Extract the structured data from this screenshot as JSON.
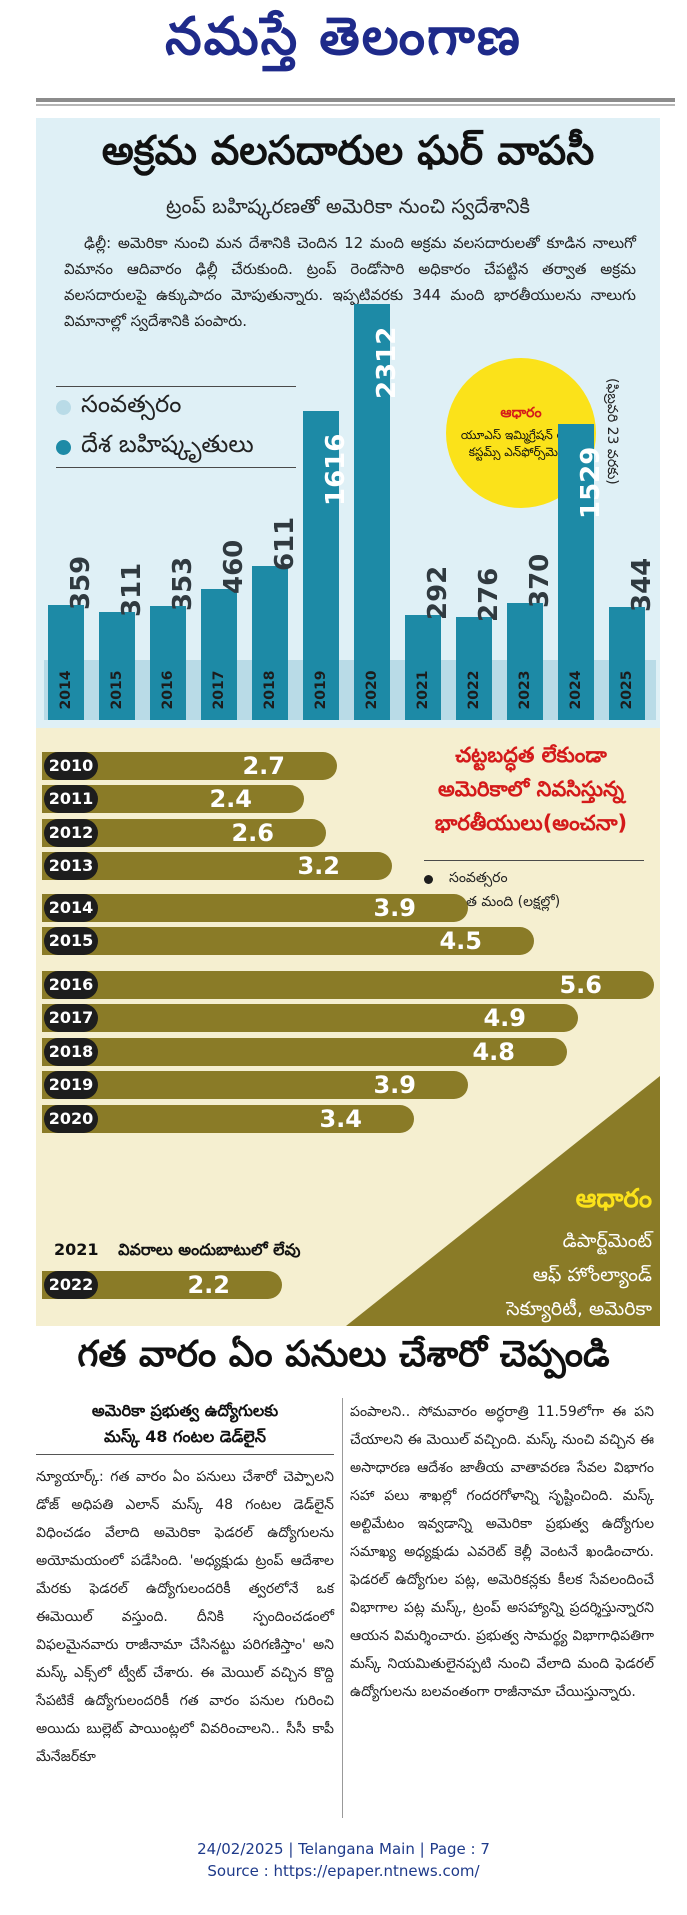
{
  "masthead": {
    "title": "నమస్తే తెలంగాణ"
  },
  "graphic": {
    "headline": "అక్రమ వలసదారుల ఘర్ వాపసీ",
    "subheadline": "ట్రంప్ బహిష్కరణతో అమెరికా నుంచి స్వదేశానికి",
    "intro": "ఢిల్లీ: అమెరికా నుంచి మన దేశానికి చెందిన 12 మంది అక్రమ వలసదారులతో కూడిన నాలుగో విమానం ఆదివారం ఢిల్లీ చేరుకుంది. ట్రంప్ రెండోసారి అధికారం చేపట్టిన తర్వాత అక్రమ వలసదారులపై ఉక్కుపాదం మోపుతున్నారు. ఇప్పటివరకు 344 మంది భారతీయులను నాలుగు విమానాల్లో స్వదేశానికి పంపారు.",
    "legend_year": "సంవత్సరం",
    "legend_deported": "దేశ బహిష్కృతులు",
    "source_label": "ఆధారం",
    "source_text": "యూఎస్ ఇమ్మిగ్రేషన్ అండ్ కస్టమ్స్ ఎన్‌ఫోర్స్‌మెంట్",
    "date_note": "(ఫిబ్రవరి 23 వరకు)",
    "colors": {
      "bar": "#1d8aa6",
      "panel": "#dff0f6",
      "strip": "#b9dbe7",
      "source_bg": "#fbe21a"
    }
  },
  "chart_data": [
    {
      "type": "bar",
      "categories": [
        "2014",
        "2015",
        "2016",
        "2017",
        "2018",
        "2019",
        "2020",
        "2021",
        "2022",
        "2023",
        "2024",
        "2025"
      ],
      "values": [
        359,
        311,
        353,
        460,
        611,
        1616,
        2312,
        292,
        276,
        370,
        1529,
        344
      ],
      "value_labels": [
        "359",
        "311",
        "353",
        "460",
        "611",
        "1616",
        "2312",
        "292",
        "276",
        "370",
        "1529",
        "344"
      ],
      "series": [
        {
          "name": "దేశ బహిష్కృతులు",
          "values": [
            359,
            311,
            353,
            460,
            611,
            1616,
            2312,
            292,
            276,
            370,
            1529,
            344
          ]
        }
      ],
      "legend": [
        "సంవత్సరం",
        "దేశ బహిష్కృతులు"
      ],
      "title": "",
      "ylim": [
        0,
        2400
      ],
      "grid": false
    },
    {
      "type": "bar",
      "orientation": "horizontal",
      "title": "చట్టబద్ధత లేకుండా అమెరికాలో నివసిస్తున్న భారతీయులు(అంచనా)",
      "title_lines": [
        "చట్టబద్ధత లేకుండా",
        "అమెరికాలో నివసిస్తున్న",
        "భారతీయులు(అంచనా)"
      ],
      "legend": [
        "సంవత్సరం",
        "ఎంత మంది (లక్షల్లో)"
      ],
      "categories": [
        "2010",
        "2011",
        "2012",
        "2013",
        "2014",
        "2015",
        "2016",
        "2017",
        "2018",
        "2019",
        "2020",
        "2021",
        "2022"
      ],
      "values": [
        2.7,
        2.4,
        2.6,
        3.2,
        3.9,
        4.5,
        5.6,
        4.9,
        4.8,
        3.9,
        3.4,
        null,
        2.2
      ],
      "value_labels": [
        "2.7",
        "2.4",
        "2.6",
        "3.2",
        "3.9",
        "4.5",
        "5.6",
        "4.9",
        "4.8",
        "3.9",
        "3.4",
        "",
        "2.2"
      ],
      "missing_note": "వివరాలు అందుబాటులో లేవు",
      "xlim": [
        0,
        5.6
      ],
      "grid": false,
      "colors": {
        "bar": "#8a7b27",
        "year_pill": "#1d1d1d",
        "panel": "#f5efd0",
        "title": "#d41a1a"
      },
      "source_label": "ఆధారం",
      "source_lines": [
        "డిపార్ట్‌మెంట్",
        "ఆఫ్ హోంల్యాండ్",
        "సెక్యూరిటీ, అమెరికా"
      ]
    }
  ],
  "article": {
    "headline": "గత వారం ఏం పనులు చేశారో చెప్పండి",
    "kicker_line1": "అమెరికా ప్రభుత్వ ఉద్యోగులకు",
    "kicker_line2": "మస్క్ 48 గంటల డెడ్‌లైన్",
    "left_body": "న్యూయార్క్: గత వారం ఏం పనులు చేశారో చెప్పాలని డోజ్ అధిపతి ఎలాన్ మస్క్ 48 గంటల డెడ్‌లైన్ విధించడం వేలాది అమెరికా ఫెడరల్ ఉద్యోగులను అయోమయంలో పడేసింది. 'అధ్యక్షుడు ట్రంప్ ఆదేశాల మేరకు ఫెడరల్ ఉద్యోగులందరికీ త్వరలోనే ఒక ఈమెయిల్ వస్తుంది. దీనికి స్పందించడంలో విఫలమైనవారు రాజీనామా చేసినట్టు పరిగణిస్తాం' అని మస్క్ ఎక్స్‌లో ట్వీట్ చేశారు. ఈ మెయిల్ వచ్చిన కొద్ది సేపటికే ఉద్యోగులందరికీ గత వారం పనుల గురించి అయిదు బుల్లెట్ పాయింట్లలో వివరించాలని.. సీసీ కాపీ మేనేజర్‌కూ",
    "right_body": "పంపాలని.. సోమవారం అర్ధరాత్రి 11.59లోగా ఈ పని చేయాలని ఈ మెయిల్ వచ్చింది. మస్క్ నుంచి వచ్చిన ఈ అసాధారణ ఆదేశం జాతీయ వాతావరణ సేవల విభాగం సహా పలు శాఖల్లో గందరగోళాన్ని సృష్టించింది. మస్క్ అల్టిమేటం ఇవ్వడాన్ని అమెరికా ప్రభుత్వ ఉద్యోగుల సమాఖ్య అధ్యక్షుడు ఎవరెట్ కెల్లీ వెంటనే ఖండించారు. ఫెడరల్ ఉద్యోగుల పట్ల, అమెరికన్లకు కీలక సేవలందించే విభాగాల పట్ల మస్క్, ట్రంప్ అసహ్యాన్ని ప్రదర్శిస్తున్నారని ఆయన విమర్శించారు. ప్రభుత్వ సామర్థ్య విభాగాధిపతిగా మస్క్ నియమితులైనప్పటి నుంచి వేలాది మంది ఫెడరల్ ఉద్యోగులను బలవంతంగా రాజీనామా చేయిస్తున్నారు."
  },
  "footer": {
    "line1": "24/02/2025 | Telangana Main | Page : 7",
    "line2": "Source : https://epaper.ntnews.com/"
  }
}
